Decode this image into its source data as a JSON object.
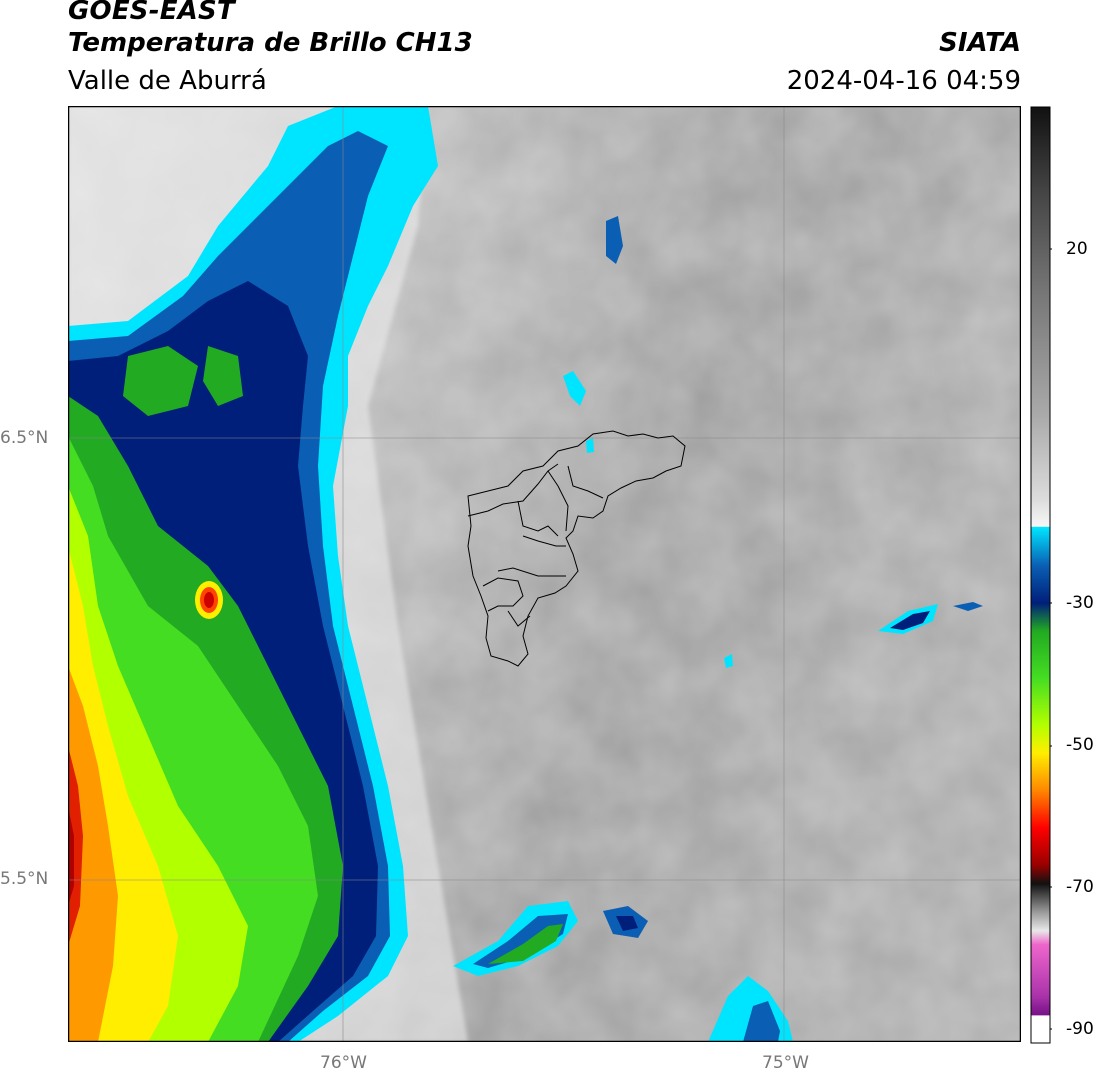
{
  "header": {
    "satellite": "GOES-EAST",
    "product": "Temperatura de Brillo CH13",
    "region": "Valle de Aburrá",
    "agency": "SIATA",
    "datetime": "2024-04-16 04:59"
  },
  "axes": {
    "lat_labels": [
      "6.5°N",
      "5.5°N"
    ],
    "lon_labels": [
      "76°W",
      "75°W"
    ]
  },
  "colorbar": {
    "ticks": [
      "20",
      "-30",
      "-50",
      "-70",
      "-90"
    ]
  },
  "colors": {
    "cloud_cyan": "#00e5ff",
    "cloud_blue": "#0a5fb4",
    "cloud_navy": "#001f7a",
    "cloud_green": "#22cc22",
    "cloud_lime": "#b2ff00",
    "cloud_yellow": "#ffee00",
    "cloud_orange": "#ff8800",
    "cloud_red": "#dd0000",
    "clear_gray": "#9a9a9a"
  }
}
